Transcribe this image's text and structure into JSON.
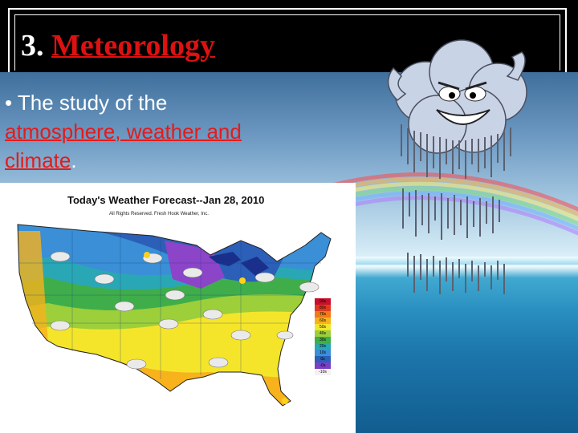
{
  "slide": {
    "number": "3.",
    "title": "Meteorology"
  },
  "bullet": {
    "marker": "•",
    "prefix": "The study of the",
    "highlight": "atmosphere, weather and climate",
    "suffix": "."
  },
  "map": {
    "title": "Today's Weather Forecast--Jan 28, 2010",
    "subtitle": "All Rights Reserved. Fresh Hook Weather, Inc.",
    "legend": [
      {
        "label": "90s",
        "color": "#c8102e"
      },
      {
        "label": "80s",
        "color": "#e03a1e"
      },
      {
        "label": "70s",
        "color": "#f07a1a"
      },
      {
        "label": "60s",
        "color": "#f7b21c"
      },
      {
        "label": "50s",
        "color": "#f5e52a"
      },
      {
        "label": "40s",
        "color": "#9ccf3a"
      },
      {
        "label": "30s",
        "color": "#3fae4a"
      },
      {
        "label": "20s",
        "color": "#2aa7b5"
      },
      {
        "label": "10s",
        "color": "#3a8fd6"
      },
      {
        "label": "0s",
        "color": "#2b5fb8"
      },
      {
        "label": "-0s",
        "color": "#7b3fc4"
      },
      {
        "label": "-10s",
        "color": "#f2f2f2"
      }
    ]
  },
  "colors": {
    "title_keyword": "#d11111",
    "highlight": "#e31b1b"
  },
  "icons": [
    "cloud-character-icon",
    "forecast-cloud-icon",
    "sun-icon",
    "snow-icon"
  ]
}
